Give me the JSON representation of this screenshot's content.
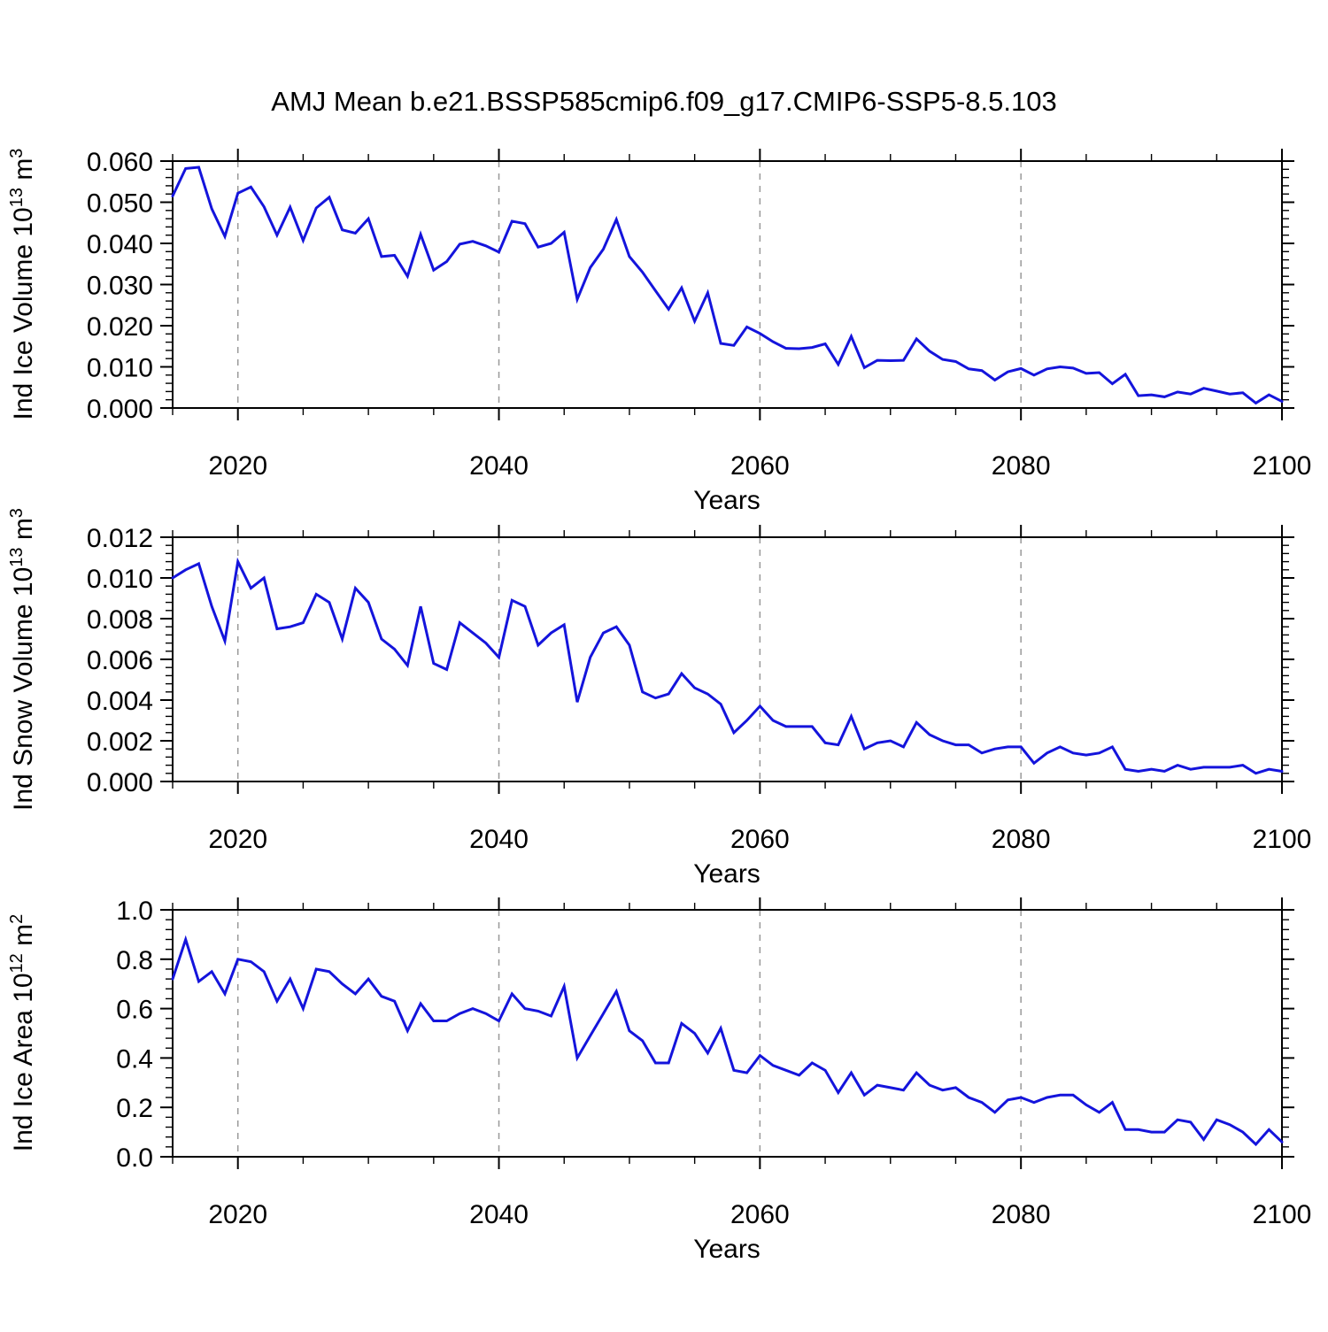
{
  "title": "AMJ Mean b.e21.BSSP585cmip6.f09_g17.CMIP6-SSP5-8.5.103",
  "xlabel": "Years",
  "colors": {
    "line": "#1414dc",
    "grid": "#999999",
    "frame": "#000000"
  },
  "chart_data": [
    {
      "type": "line",
      "name": "ice-volume",
      "title": "AMJ Mean b.e21.BSSP585cmip6.f09_g17.CMIP6-SSP5-8.5.103",
      "xlabel": "Years",
      "ylabel": "Ind Ice Volume 10^13 m^3",
      "ylabel_parts": {
        "pre": "Ind Ice Volume 10",
        "sup1": "13",
        "mid": " m",
        "sup2": "3"
      },
      "xlim": [
        2015,
        2100
      ],
      "ylim": [
        0,
        0.06
      ],
      "x_start": 2015,
      "x_end": 2100,
      "x_step": 1,
      "xticks": {
        "major": [
          2020,
          2040,
          2060,
          2080,
          2100
        ],
        "labels": [
          "2020",
          "2040",
          "2060",
          "2080",
          "2100"
        ],
        "minor_step": 5
      },
      "yticks": {
        "major": [
          0,
          0.01,
          0.02,
          0.03,
          0.04,
          0.05,
          0.06
        ],
        "labels": [
          "0.000",
          "0.010",
          "0.020",
          "0.030",
          "0.040",
          "0.050",
          "0.060"
        ],
        "minor_step": 0.002
      },
      "gridlines_x": [
        2020,
        2040,
        2060,
        2080
      ],
      "grid_style": "dashed",
      "legend": "none",
      "values": [
        0.0515,
        0.0582,
        0.0585,
        0.0484,
        0.0417,
        0.0522,
        0.0537,
        0.0489,
        0.042,
        0.0488,
        0.0407,
        0.0486,
        0.0512,
        0.0433,
        0.0425,
        0.046,
        0.0368,
        0.0371,
        0.032,
        0.0422,
        0.0335,
        0.0356,
        0.0398,
        0.0405,
        0.0394,
        0.0379,
        0.0454,
        0.0448,
        0.0391,
        0.04,
        0.0427,
        0.0264,
        0.0341,
        0.0386,
        0.0458,
        0.0368,
        0.033,
        0.0285,
        0.024,
        0.0292,
        0.0211,
        0.028,
        0.0157,
        0.0152,
        0.0197,
        0.0181,
        0.0161,
        0.0145,
        0.0144,
        0.0147,
        0.0156,
        0.0106,
        0.0174,
        0.0098,
        0.0116,
        0.0115,
        0.0116,
        0.0168,
        0.0138,
        0.0118,
        0.0113,
        0.0095,
        0.0091,
        0.0068,
        0.0088,
        0.0096,
        0.008,
        0.0095,
        0.01,
        0.0097,
        0.0084,
        0.0086,
        0.0059,
        0.0082,
        0.003,
        0.0032,
        0.0027,
        0.0039,
        0.0034,
        0.0048,
        0.0041,
        0.0034,
        0.0037,
        0.0012,
        0.0032,
        0.0016
      ]
    },
    {
      "type": "line",
      "name": "snow-volume",
      "xlabel": "Years",
      "ylabel": "Ind Snow Volume 10^13 m^3",
      "ylabel_parts": {
        "pre": "Ind Snow Volume 10",
        "sup1": "13",
        "mid": " m",
        "sup2": "3"
      },
      "xlim": [
        2015,
        2100
      ],
      "ylim": [
        0,
        0.012
      ],
      "x_start": 2015,
      "x_end": 2100,
      "x_step": 1,
      "xticks": {
        "major": [
          2020,
          2040,
          2060,
          2080,
          2100
        ],
        "labels": [
          "2020",
          "2040",
          "2060",
          "2080",
          "2100"
        ],
        "minor_step": 5
      },
      "yticks": {
        "major": [
          0,
          0.002,
          0.004,
          0.006,
          0.008,
          0.01,
          0.012
        ],
        "labels": [
          "0.000",
          "0.002",
          "0.004",
          "0.006",
          "0.008",
          "0.010",
          "0.012"
        ],
        "minor_step": 0.0004
      },
      "gridlines_x": [
        2020,
        2040,
        2060,
        2080
      ],
      "grid_style": "dashed",
      "legend": "none",
      "values": [
        0.01,
        0.0104,
        0.0107,
        0.0086,
        0.0069,
        0.0108,
        0.0095,
        0.01,
        0.0075,
        0.0076,
        0.0078,
        0.0092,
        0.0088,
        0.007,
        0.0095,
        0.0088,
        0.007,
        0.0065,
        0.0057,
        0.0086,
        0.0058,
        0.0055,
        0.0078,
        0.0073,
        0.0068,
        0.0061,
        0.0089,
        0.0086,
        0.0067,
        0.0073,
        0.0077,
        0.0039,
        0.0061,
        0.0073,
        0.0076,
        0.0067,
        0.0044,
        0.0041,
        0.0043,
        0.0053,
        0.0046,
        0.0043,
        0.0038,
        0.0024,
        0.003,
        0.0037,
        0.003,
        0.0027,
        0.0027,
        0.0027,
        0.0019,
        0.0018,
        0.0032,
        0.0016,
        0.0019,
        0.002,
        0.0017,
        0.0029,
        0.0023,
        0.002,
        0.0018,
        0.0018,
        0.0014,
        0.0016,
        0.0017,
        0.0017,
        0.0009,
        0.0014,
        0.0017,
        0.0014,
        0.0013,
        0.0014,
        0.0017,
        0.0006,
        0.0005,
        0.0006,
        0.0005,
        0.0008,
        0.0006,
        0.0007,
        0.0007,
        0.0007,
        0.0008,
        0.0004,
        0.0006,
        0.0005
      ]
    },
    {
      "type": "line",
      "name": "ice-area",
      "xlabel": "Years",
      "ylabel": "Ind Ice Area 10^12 m^2",
      "ylabel_parts": {
        "pre": "Ind Ice Area 10",
        "sup1": "12",
        "mid": " m",
        "sup2": "2"
      },
      "xlim": [
        2015,
        2100
      ],
      "ylim": [
        0,
        1.0
      ],
      "x_start": 2015,
      "x_end": 2100,
      "x_step": 1,
      "xticks": {
        "major": [
          2020,
          2040,
          2060,
          2080,
          2100
        ],
        "labels": [
          "2020",
          "2040",
          "2060",
          "2080",
          "2100"
        ],
        "minor_step": 5
      },
      "yticks": {
        "major": [
          0,
          0.2,
          0.4,
          0.6,
          0.8,
          1.0
        ],
        "labels": [
          "0.0",
          "0.2",
          "0.4",
          "0.6",
          "0.8",
          "1.0"
        ],
        "minor_step": 0.04
      },
      "gridlines_x": [
        2020,
        2040,
        2060,
        2080
      ],
      "grid_style": "dashed",
      "legend": "none",
      "values": [
        0.72,
        0.88,
        0.71,
        0.75,
        0.66,
        0.8,
        0.79,
        0.75,
        0.63,
        0.72,
        0.6,
        0.76,
        0.75,
        0.7,
        0.66,
        0.72,
        0.65,
        0.63,
        0.51,
        0.62,
        0.55,
        0.55,
        0.58,
        0.6,
        0.58,
        0.55,
        0.66,
        0.6,
        0.59,
        0.57,
        0.69,
        0.4,
        0.49,
        0.58,
        0.67,
        0.51,
        0.47,
        0.38,
        0.38,
        0.54,
        0.5,
        0.42,
        0.52,
        0.35,
        0.34,
        0.41,
        0.37,
        0.35,
        0.33,
        0.38,
        0.35,
        0.26,
        0.34,
        0.25,
        0.29,
        0.28,
        0.27,
        0.34,
        0.29,
        0.27,
        0.28,
        0.24,
        0.22,
        0.18,
        0.23,
        0.24,
        0.22,
        0.24,
        0.25,
        0.25,
        0.21,
        0.18,
        0.22,
        0.11,
        0.11,
        0.1,
        0.1,
        0.15,
        0.14,
        0.07,
        0.15,
        0.13,
        0.1,
        0.05,
        0.11,
        0.06
      ]
    }
  ]
}
